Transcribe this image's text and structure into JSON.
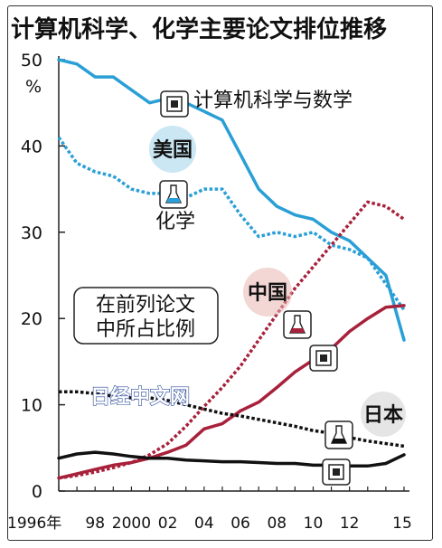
{
  "title": "计算机科学、化学主要论文排位推移",
  "y_unit": "%",
  "note_lines": [
    "在前列论文",
    "中所占比例"
  ],
  "watermark": "日经中文网",
  "labels": {
    "us": "美国",
    "china": "中国",
    "japan": "日本",
    "cs": "计算机科学与数学",
    "chem": "化学"
  },
  "colors": {
    "us": "#2a9fd6",
    "china": "#a8213b",
    "japan": "#111111"
  },
  "chart_data": {
    "type": "line",
    "title": "计算机科学、化学主要论文排位推移",
    "xlabel": "",
    "ylabel": "%",
    "x": [
      1996,
      1997,
      1998,
      1999,
      2000,
      2001,
      2002,
      2003,
      2004,
      2005,
      2006,
      2007,
      2008,
      2009,
      2010,
      2011,
      2012,
      2013,
      2014,
      2015
    ],
    "x_tick_labels": [
      "1996年",
      "98",
      "2000",
      "02",
      "04",
      "06",
      "08",
      "10",
      "12",
      "15"
    ],
    "x_tick_values": [
      1996,
      1998,
      2000,
      2002,
      2004,
      2006,
      2008,
      2010,
      2012,
      2014.9
    ],
    "ylim": [
      0,
      50
    ],
    "yticks": [
      0,
      10,
      20,
      30,
      40,
      50
    ],
    "series": [
      {
        "name": "美国 计算机科学与数学",
        "style": "solid",
        "color": "#2a9fd6",
        "values": [
          50,
          49.5,
          48,
          48,
          46.5,
          45,
          45.5,
          45,
          44,
          43,
          39,
          35,
          33,
          32,
          31.5,
          30,
          29,
          27,
          25,
          17.5
        ]
      },
      {
        "name": "美国 化学",
        "style": "dotted",
        "color": "#2a9fd6",
        "values": [
          41,
          38,
          37,
          36.5,
          35,
          34.5,
          34.5,
          34,
          35,
          35,
          32,
          29.5,
          30,
          29.5,
          30,
          28.5,
          28,
          27,
          24,
          21
        ]
      },
      {
        "name": "中国 计算机科学与数学",
        "style": "solid",
        "color": "#a8213b",
        "values": [
          1.5,
          2,
          2.5,
          3,
          3.3,
          3.8,
          4.5,
          5.3,
          7.2,
          7.8,
          9.3,
          10.3,
          12,
          13.8,
          15.2,
          16.5,
          18.5,
          20,
          21.3,
          21.5
        ]
      },
      {
        "name": "中国 化学",
        "style": "dotted",
        "color": "#a8213b",
        "values": [
          1.5,
          1.8,
          2.2,
          2.7,
          3.3,
          4.2,
          5.5,
          7.5,
          9.8,
          12,
          14.5,
          17.5,
          20.5,
          23.5,
          26,
          28.5,
          31,
          33.5,
          33,
          31.5
        ]
      },
      {
        "name": "日本 计算机科学与数学",
        "style": "solid",
        "color": "#111111",
        "values": [
          3.8,
          4.3,
          4.5,
          4.3,
          4,
          3.8,
          3.8,
          3.6,
          3.5,
          3.4,
          3.4,
          3.3,
          3.2,
          3.2,
          3.0,
          3.0,
          2.9,
          2.9,
          3.2,
          4.2
        ]
      },
      {
        "name": "日本 化学",
        "style": "dotted",
        "color": "#111111",
        "values": [
          11.5,
          11.5,
          11.3,
          11,
          10.8,
          10.8,
          10.5,
          10,
          9.5,
          9,
          8.7,
          8.3,
          7.9,
          7.5,
          7,
          6.7,
          6.2,
          5.8,
          5.5,
          5.2
        ]
      }
    ]
  }
}
